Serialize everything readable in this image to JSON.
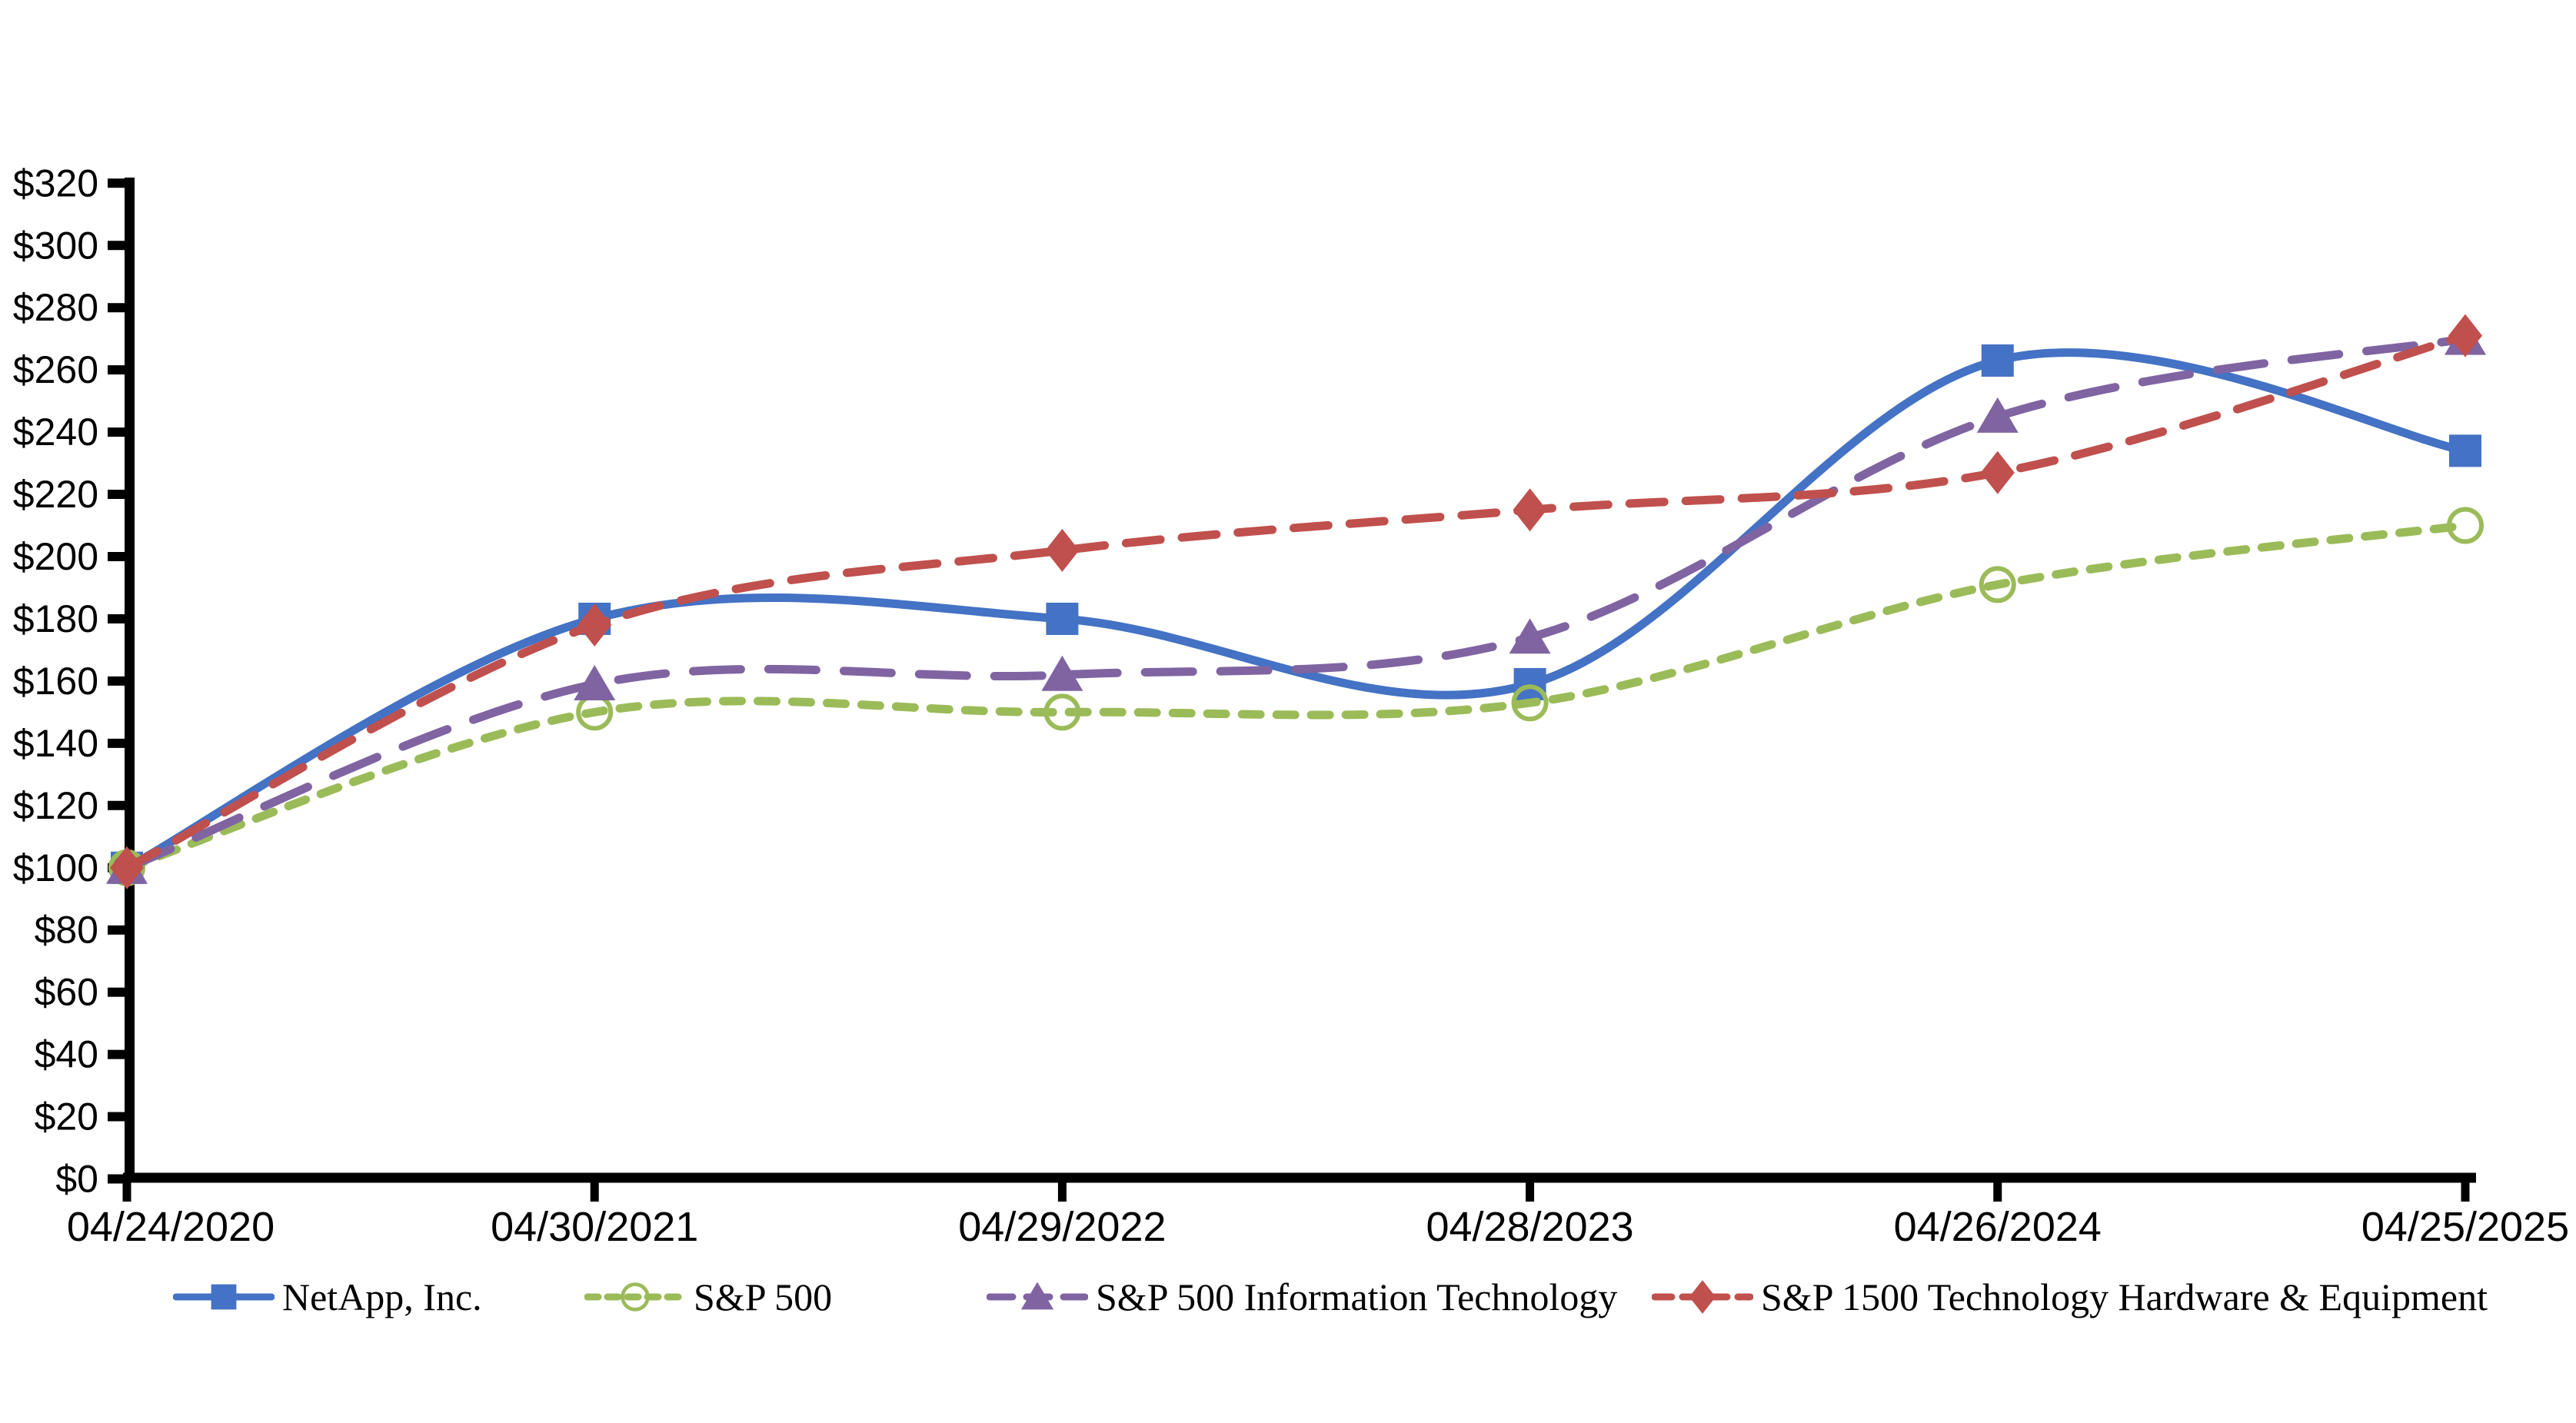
{
  "chart_data": {
    "type": "line",
    "title": "",
    "subtitle": "",
    "grid": false,
    "legend_position": "bottom",
    "x_categories": [
      "04/24/2020",
      "04/30/2021",
      "04/29/2022",
      "04/28/2023",
      "04/26/2024",
      "04/25/2025"
    ],
    "y_axis": {
      "min": 0,
      "max": 320,
      "step": 20,
      "tick_prefix": "$",
      "tick_labels": [
        "$0",
        "$20",
        "$40",
        "$60",
        "$80",
        "$100",
        "$120",
        "$140",
        "$160",
        "$180",
        "$200",
        "$220",
        "$240",
        "$260",
        "$280",
        "$300",
        "$320"
      ]
    },
    "series": [
      {
        "name": "NetApp, Inc.",
        "color": "#4472C4",
        "line_style": "solid",
        "marker": "square",
        "values": [
          100,
          180,
          180,
          159,
          263,
          234
        ]
      },
      {
        "name": "S&P 500",
        "color": "#9BBB59",
        "line_style": "short-dash",
        "marker": "open-circle",
        "values": [
          100,
          150,
          150,
          153,
          191,
          210
        ]
      },
      {
        "name": "S&P 500 Information Technology",
        "color": "#8064A2",
        "line_style": "long-dash",
        "marker": "triangle",
        "values": [
          100,
          159,
          162,
          174,
          245,
          270
        ]
      },
      {
        "name": "S&P 1500 Technology Hardware & Equipment",
        "color": "#C0504D",
        "line_style": "dash",
        "marker": "diamond",
        "values": [
          100,
          178,
          202,
          215,
          227,
          271
        ]
      }
    ]
  }
}
